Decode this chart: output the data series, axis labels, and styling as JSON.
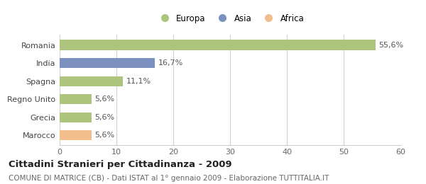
{
  "categories": [
    "Marocco",
    "Grecia",
    "Regno Unito",
    "Spagna",
    "India",
    "Romania"
  ],
  "values": [
    5.6,
    5.6,
    5.6,
    11.1,
    16.7,
    55.6
  ],
  "labels": [
    "5,6%",
    "5,6%",
    "5,6%",
    "11,1%",
    "16,7%",
    "55,6%"
  ],
  "colors": [
    "#f2be8c",
    "#adc47d",
    "#adc47d",
    "#adc47d",
    "#7b90bf",
    "#adc47d"
  ],
  "legend_items": [
    {
      "label": "Europa",
      "color": "#adc47d"
    },
    {
      "label": "Asia",
      "color": "#7b90bf"
    },
    {
      "label": "Africa",
      "color": "#f2be8c"
    }
  ],
  "xlim": [
    0,
    60
  ],
  "xticks": [
    0,
    10,
    20,
    30,
    40,
    50,
    60
  ],
  "title": "Cittadini Stranieri per Cittadinanza - 2009",
  "subtitle": "COMUNE DI MATRICE (CB) - Dati ISTAT al 1° gennaio 2009 - Elaborazione TUTTITALIA.IT",
  "background_color": "#ffffff",
  "grid_color": "#cccccc",
  "bar_height": 0.55,
  "title_fontsize": 9.5,
  "subtitle_fontsize": 7.5,
  "label_fontsize": 8,
  "tick_fontsize": 8,
  "legend_fontsize": 8.5
}
